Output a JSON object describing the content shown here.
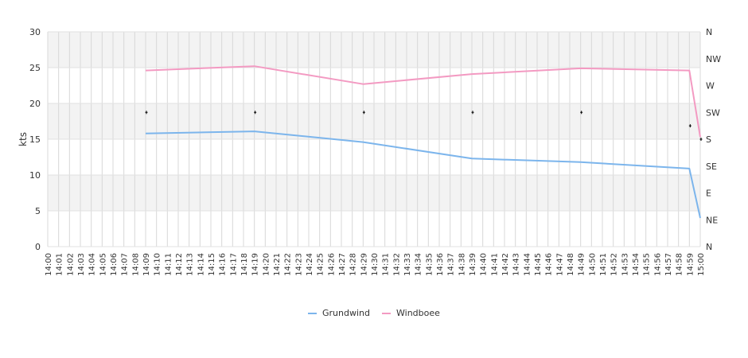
{
  "chart_data": {
    "type": "line",
    "title": "",
    "ylabel": "kts",
    "ylim": [
      0,
      30
    ],
    "yticks": [
      0,
      5,
      10,
      15,
      20,
      25,
      30
    ],
    "y2ticks": [
      "N",
      "NE",
      "E",
      "SE",
      "S",
      "SW",
      "W",
      "NW",
      "N"
    ],
    "xticks": [
      "14:00",
      "14:01",
      "14:02",
      "14:03",
      "14:04",
      "14:05",
      "14:06",
      "14:07",
      "14:08",
      "14:09",
      "14:10",
      "14:11",
      "14:12",
      "14:13",
      "14:14",
      "14:15",
      "14:16",
      "14:17",
      "14:18",
      "14:19",
      "14:20",
      "14:21",
      "14:22",
      "14:23",
      "14:24",
      "14:25",
      "14:26",
      "14:27",
      "14:28",
      "14:29",
      "14:30",
      "14:31",
      "14:32",
      "14:33",
      "14:34",
      "14:35",
      "14:36",
      "14:37",
      "14:38",
      "14:39",
      "14:40",
      "14:41",
      "14:42",
      "14:43",
      "14:44",
      "14:45",
      "14:46",
      "14:47",
      "14:48",
      "14:49",
      "14:50",
      "14:51",
      "14:52",
      "14:53",
      "14:54",
      "14:55",
      "14:56",
      "14:57",
      "14:58",
      "14:59",
      "15:00"
    ],
    "grid": true,
    "legend_position": "bottom",
    "series": [
      {
        "name": "Grundwind",
        "color": "#7cb5ec",
        "points": [
          {
            "x": "14:09",
            "y": 15.8
          },
          {
            "x": "14:19",
            "y": 16.1
          },
          {
            "x": "14:29",
            "y": 14.6
          },
          {
            "x": "14:39",
            "y": 12.3
          },
          {
            "x": "14:49",
            "y": 11.8
          },
          {
            "x": "14:59",
            "y": 10.9
          },
          {
            "x": "15:00",
            "y": 4.0
          }
        ]
      },
      {
        "name": "Windboee",
        "color": "#f39ac2",
        "points": [
          {
            "x": "14:09",
            "y": 24.6
          },
          {
            "x": "14:19",
            "y": 25.2
          },
          {
            "x": "14:29",
            "y": 22.7
          },
          {
            "x": "14:39",
            "y": 24.1
          },
          {
            "x": "14:49",
            "y": 24.9
          },
          {
            "x": "14:59",
            "y": 24.6
          },
          {
            "x": "15:00",
            "y": 15.3
          }
        ]
      }
    ],
    "direction_markers": [
      {
        "x": "14:09",
        "direction": "SW"
      },
      {
        "x": "14:19",
        "direction": "SW"
      },
      {
        "x": "14:29",
        "direction": "SW"
      },
      {
        "x": "14:39",
        "direction": "SW"
      },
      {
        "x": "14:49",
        "direction": "SW"
      },
      {
        "x": "14:59",
        "direction": "SSW"
      },
      {
        "x": "15:00",
        "direction": "S"
      }
    ]
  }
}
